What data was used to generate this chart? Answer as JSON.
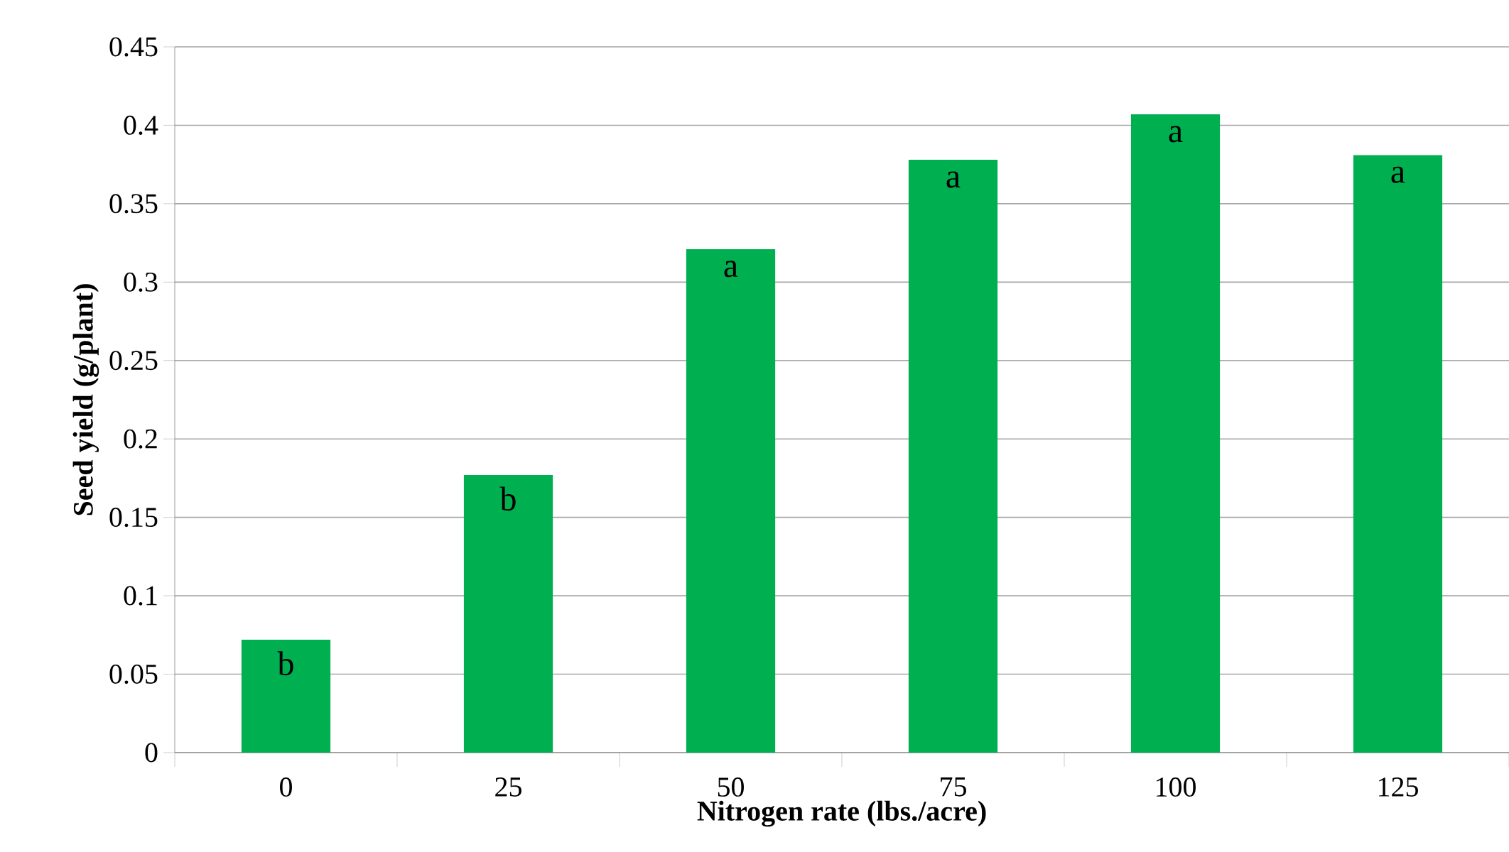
{
  "chart_data": {
    "type": "bar",
    "xlabel": "Nitrogen rate (lbs./acre)",
    "ylabel": "Seed yield (g/plant)",
    "categories": [
      "0",
      "25",
      "50",
      "75",
      "100",
      "125"
    ],
    "values": [
      0.072,
      0.177,
      0.321,
      0.378,
      0.407,
      0.381
    ],
    "color": "#00b050",
    "ylim": [
      0,
      0.45
    ],
    "yticks": [
      0,
      0.05,
      0.1,
      0.15,
      0.2,
      0.25,
      0.3,
      0.35,
      0.4,
      0.45
    ],
    "grid": "y",
    "annotations": [
      {
        "text": "b",
        "x": "0",
        "y": 0.072
      },
      {
        "text": "b",
        "x": "25",
        "y": 0.177
      },
      {
        "text": "a",
        "x": "50",
        "y": 0.321
      },
      {
        "text": "a",
        "x": "75",
        "y": 0.378
      },
      {
        "text": "a",
        "x": "100",
        "y": 0.407
      },
      {
        "text": "a",
        "x": "125",
        "y": 0.381
      }
    ]
  }
}
